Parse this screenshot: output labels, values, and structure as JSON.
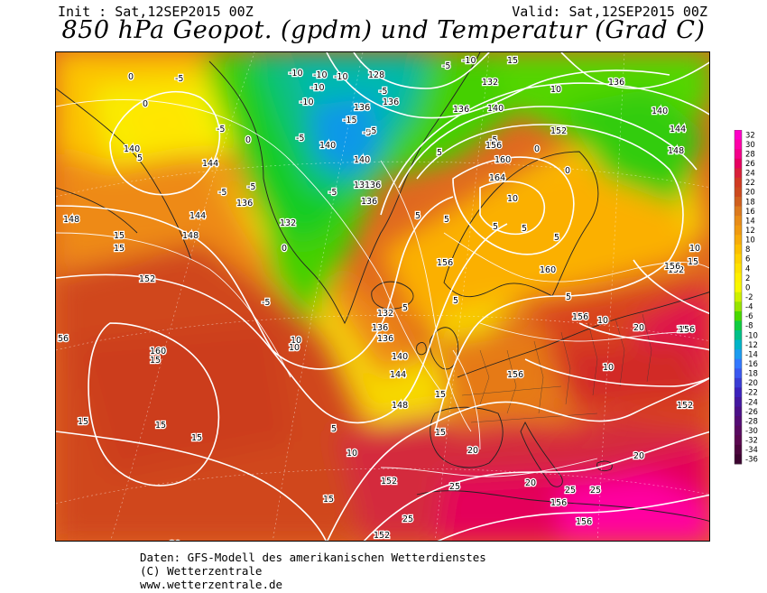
{
  "header": {
    "init": "Init : Sat,12SEP2015 00Z",
    "valid": "Valid: Sat,12SEP2015 00Z",
    "title": "850 hPa Geopot. (gpdm) und Temperatur (Grad C)"
  },
  "legend": {
    "values": [
      "32",
      "30",
      "28",
      "26",
      "24",
      "22",
      "20",
      "18",
      "16",
      "14",
      "12",
      "10",
      "8",
      "6",
      "4",
      "2",
      "0",
      "-2",
      "-4",
      "-6",
      "-8",
      "-10",
      "-12",
      "-14",
      "-16",
      "-18",
      "-20",
      "-22",
      "-24",
      "-26",
      "-28",
      "-30",
      "-32",
      "-34",
      "-36"
    ],
    "colors": [
      "#ff00c8",
      "#ff00a8",
      "#f4008a",
      "#e60060",
      "#d8203a",
      "#d03a22",
      "#cc4a1e",
      "#d0601e",
      "#dc7a1e",
      "#e88c18",
      "#f09a10",
      "#f7ac0a",
      "#fcc000",
      "#ffd200",
      "#ffe200",
      "#fff000",
      "#f8f800",
      "#cef000",
      "#98e400",
      "#4ad800",
      "#10cc40",
      "#00c088",
      "#00b4c8",
      "#1c9cf0",
      "#3278ff",
      "#3a58f0",
      "#3a3cd4",
      "#3c22bc",
      "#4418a0",
      "#4c1088",
      "#540c74",
      "#580a60",
      "#5a0850",
      "#4c063e",
      "#3c0430"
    ]
  },
  "geopotential_labels": [
    "128",
    "132",
    "136",
    "140",
    "144",
    "148",
    "152",
    "156",
    "160",
    "164",
    "128",
    "132",
    "136",
    "136",
    "140",
    "140",
    "132",
    "136",
    "136",
    "140",
    "144",
    "148",
    "152",
    "156",
    "152",
    "148",
    "144",
    "140",
    "136",
    "132",
    "136",
    "140",
    "136",
    "132",
    "156",
    "160",
    "156",
    "156",
    "152",
    "156",
    "148",
    "144",
    "140",
    "136",
    "160",
    "152",
    "152",
    "156",
    "156"
  ],
  "temperature_labels": [
    "0",
    "-5",
    "-10",
    "-5",
    "10",
    "15",
    "20",
    "25",
    "15",
    "20",
    "25",
    "15",
    "10",
    "5",
    "0",
    "-15",
    "-10",
    "-5",
    "0",
    "5",
    "10",
    "15",
    "20",
    "25"
  ],
  "map_labels": {
    "nw": [
      "-5",
      "0",
      "0",
      "140",
      "5",
      "-5",
      "0",
      "144",
      "-5",
      "-5",
      "136",
      "144",
      "148",
      "-5",
      "132",
      "15",
      "15",
      "148",
      "0"
    ],
    "north": [
      "-10",
      "-10",
      "-10",
      "-10",
      "-10",
      "136",
      "-15",
      "-5",
      "140",
      "-5",
      "140",
      "-5",
      "132",
      "136",
      "136",
      "-5",
      "-5",
      "136",
      "128"
    ],
    "ne": [
      "-5",
      "132",
      "140",
      "136",
      "-10",
      "15",
      "-5",
      "0",
      "10",
      "152",
      "136",
      "140",
      "144",
      "148",
      "5",
      "156",
      "160",
      "164",
      "10",
      "5",
      "5",
      "5",
      "0"
    ],
    "centre": [
      "5",
      "5",
      "156",
      "5",
      "160",
      "156",
      "5",
      "10",
      "156",
      "10",
      "10",
      "15",
      "152",
      "156",
      "20",
      "15",
      "5",
      "132",
      "136",
      "10",
      "136",
      "140",
      "144",
      "148",
      "15",
      "15"
    ],
    "atlantic": [
      "152",
      "56",
      "160",
      "15",
      "15",
      "15",
      "15",
      "10",
      "10",
      "5",
      "152",
      "15",
      "152",
      "20",
      "25",
      "20",
      "25",
      "25",
      "156",
      "156",
      "25",
      "20",
      "20",
      "156",
      "152"
    ]
  },
  "footer": {
    "line1": "Daten: GFS-Modell des amerikanischen Wetterdienstes",
    "line2": "(C) Wetterzentrale",
    "line3": "www.wetterzentrale.de"
  }
}
